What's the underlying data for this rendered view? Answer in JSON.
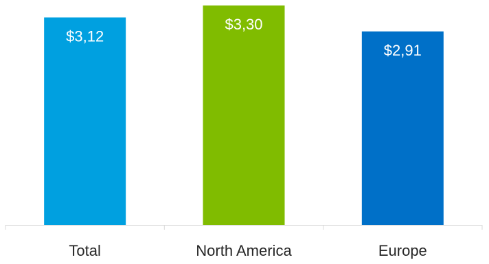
{
  "chart_data": {
    "type": "bar",
    "categories": [
      "Total",
      "North America",
      "Europe"
    ],
    "values": [
      3.12,
      3.3,
      2.91
    ],
    "value_labels": [
      "$3,12",
      "$3,30",
      "$2,91"
    ],
    "colors": [
      "#00a0e0",
      "#80bc00",
      "#0070c8"
    ],
    "title": "",
    "xlabel": "",
    "ylabel": "",
    "ylim": [
      0,
      3.3
    ],
    "grid": false,
    "legend": "none"
  }
}
